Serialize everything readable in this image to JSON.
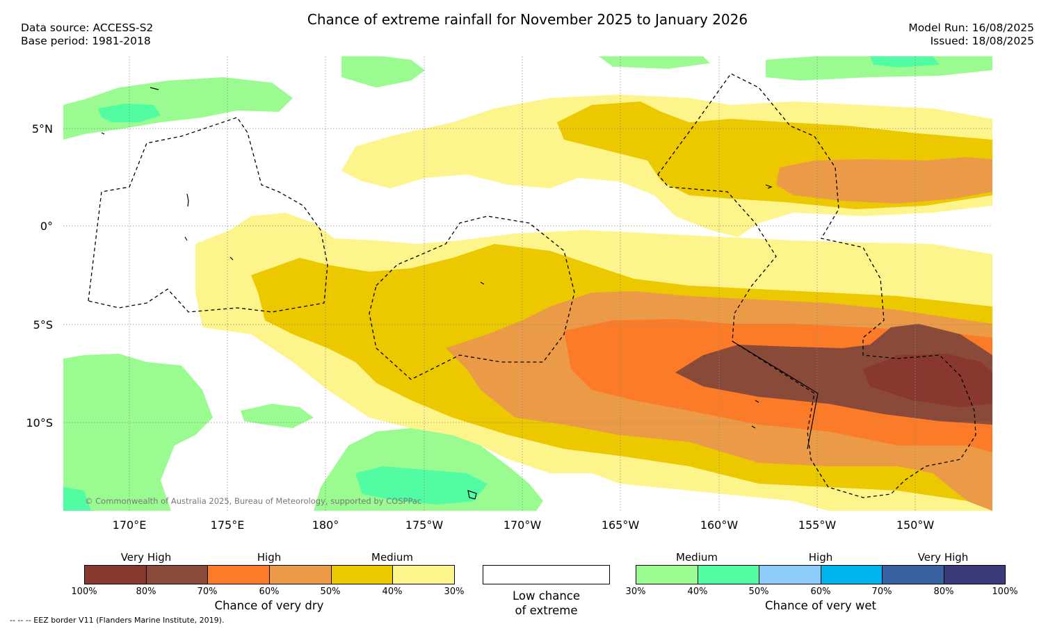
{
  "header": {
    "title": "Chance of extreme rainfall for November 2025 to January 2026",
    "data_source": "Data source: ACCESS-S2",
    "base_period": "Base period: 1981-2018",
    "model_run": "Model Run: 16/08/2025",
    "issued": "Issued: 18/08/2025"
  },
  "map": {
    "copyright": "© Commonwealth of Australia 2025, Bureau of Meteorology, supported by COSPPac",
    "lat_labels": [
      "5°N",
      "0°",
      "5°S",
      "10°S"
    ],
    "lon_labels": [
      "170°E",
      "175°E",
      "180°",
      "175°W",
      "170°W",
      "165°W",
      "160°W",
      "155°W",
      "150°W"
    ]
  },
  "legend_dry": {
    "title": "Chance of very dry",
    "categories": [
      "Very High",
      "High",
      "Medium"
    ],
    "ticks": [
      "100%",
      "80%",
      "70%",
      "60%",
      "50%",
      "40%",
      "30%"
    ],
    "colors": [
      "#893830",
      "#8a4a3a",
      "#fc7b28",
      "#eb9a47",
      "#ecc800",
      "#fdf58c"
    ]
  },
  "legend_low": {
    "line1": "Low chance",
    "line2": "of extreme"
  },
  "legend_wet": {
    "title": "Chance of very wet",
    "categories": [
      "Medium",
      "High",
      "Very High"
    ],
    "ticks": [
      "30%",
      "40%",
      "50%",
      "60%",
      "70%",
      "80%",
      "100%"
    ],
    "colors": [
      "#9afb91",
      "#52fca2",
      "#8ccbfa",
      "#00b3ec",
      "#3761a0",
      "#3c3a78"
    ]
  },
  "footer": {
    "eez": "--  --  -- EEZ border V11 (Flanders Marine Institute, 2019)."
  }
}
